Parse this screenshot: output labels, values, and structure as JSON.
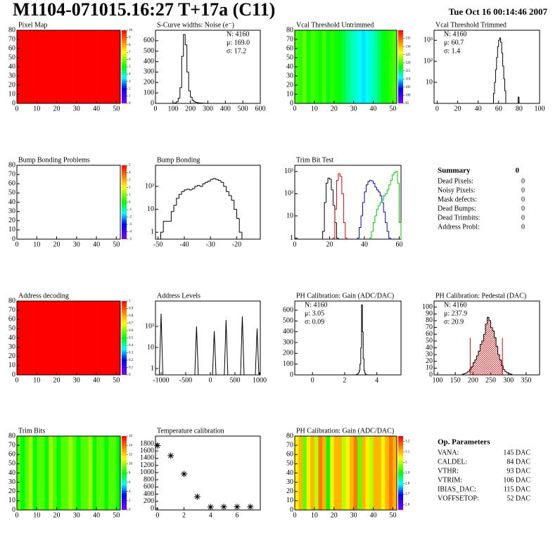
{
  "header": {
    "title": "M1104-071015.16:27 T+17a (C11)",
    "date": "Tue Oct 16 00:14:46 2007"
  },
  "chart_data": [
    {
      "type": "heatmap",
      "title": "Pixel Map",
      "xlim": [
        0,
        52
      ],
      "ylim": [
        0,
        80
      ],
      "xticks": [
        0,
        10,
        20,
        30,
        40,
        50
      ],
      "yticks": [
        0,
        10,
        20,
        30,
        40,
        50,
        60,
        70,
        80
      ],
      "zlim": [
        0,
        10
      ],
      "zticks": [
        0,
        1,
        2,
        3,
        4,
        5,
        6,
        7,
        8,
        9,
        10
      ],
      "values": [
        10,
        10,
        10,
        10,
        10,
        10,
        10,
        10,
        10,
        10,
        10,
        10,
        10
      ]
    },
    {
      "type": "hist",
      "title": "S-Curve widths: Noise (e⁻)",
      "xlim": [
        0,
        600
      ],
      "ylim": [
        0,
        700
      ],
      "xticks": [
        0,
        100,
        200,
        300,
        400,
        500,
        600
      ],
      "yticks": [
        0,
        100,
        200,
        300,
        400,
        500,
        600
      ],
      "log": false,
      "stats": [
        "N: 4160",
        "μ: 169.0",
        "σ: 17.2"
      ],
      "stats_corner": "right",
      "series": [
        {
          "color": "#000000",
          "bins": [
            100,
            110,
            120,
            130,
            140,
            150,
            160,
            170,
            180,
            190,
            200,
            210,
            220,
            230,
            240,
            250,
            260,
            270,
            280,
            290,
            300
          ],
          "values": [
            2,
            5,
            15,
            50,
            150,
            450,
            660,
            560,
            300,
            120,
            60,
            30,
            15,
            10,
            6,
            4,
            3,
            2,
            1,
            1
          ]
        }
      ]
    },
    {
      "type": "heatmap",
      "title": "Vcal Threshold Untrimmed",
      "xlim": [
        0,
        52
      ],
      "ylim": [
        0,
        80
      ],
      "xticks": [
        0,
        10,
        20,
        30,
        40,
        50
      ],
      "yticks": [
        0,
        10,
        20,
        30,
        40,
        50,
        60,
        70,
        80
      ],
      "zlim": [
        95,
        140
      ],
      "zticks": [
        95,
        100,
        105,
        110,
        115,
        120,
        125,
        130,
        135
      ],
      "values": [
        120,
        119,
        121,
        118,
        120,
        119,
        118,
        120,
        117,
        119,
        118,
        117,
        116,
        114,
        113,
        112,
        111,
        110,
        111,
        112,
        113,
        115,
        117,
        118,
        119,
        120
      ]
    },
    {
      "type": "hist",
      "title": "Vcal Threshold Trimmed",
      "xlim": [
        -3,
        100
      ],
      "ylim": [
        1,
        3000
      ],
      "xticks": [
        0,
        20,
        40,
        60,
        80,
        100
      ],
      "yticks": [
        10,
        {
          "value": 100,
          "label": "10²"
        },
        {
          "value": 1000,
          "label": "10³"
        }
      ],
      "log": true,
      "stats": [
        "N: 4160",
        "μ: 60.7",
        "σ:  1.4"
      ],
      "stats_corner": "left",
      "series": [
        {
          "color": "#000000",
          "bins": [
            54,
            55,
            56,
            57,
            58,
            59,
            60,
            61,
            62,
            63,
            64,
            65,
            66,
            67,
            68,
            69,
            70,
            71,
            72,
            73,
            74,
            75,
            76,
            77,
            78,
            79,
            80,
            81
          ],
          "values": [
            1,
            3,
            10,
            40,
            150,
            500,
            1000,
            1300,
            800,
            250,
            60,
            15,
            4,
            1,
            0,
            0,
            0,
            0,
            0,
            0,
            0,
            0,
            0,
            0,
            0,
            2,
            0
          ]
        }
      ]
    },
    {
      "type": "heatmap",
      "title": "Bump Bonding Problems",
      "xlim": [
        0,
        52
      ],
      "ylim": [
        0,
        80
      ],
      "xticks": [
        0,
        10,
        20,
        30,
        40,
        50
      ],
      "yticks": [
        0,
        10,
        20,
        30,
        40,
        50,
        60,
        70,
        80
      ],
      "zlim": [
        -5,
        5
      ],
      "zticks": [
        -5,
        -4,
        -3,
        -2,
        -1,
        0,
        1,
        2,
        3,
        4,
        5
      ]
    },
    {
      "type": "hist",
      "title": "Bump Bonding",
      "xlim": [
        -51,
        -11
      ],
      "ylim": [
        0.5,
        830
      ],
      "xticks": [
        -50,
        -40,
        -30,
        -20
      ],
      "yticks": [
        1,
        10,
        {
          "value": 100,
          "label": "10²"
        }
      ],
      "log": true,
      "series": [
        {
          "color": "#000000",
          "bins": [
            -50,
            -49,
            -48,
            -47,
            -46,
            -45,
            -44,
            -43,
            -42,
            -41,
            -40,
            -39,
            -38,
            -37,
            -36,
            -35,
            -34,
            -33,
            -32,
            -31,
            -30,
            -29,
            -28,
            -27,
            -26,
            -25,
            -24,
            -23,
            -22,
            -21,
            -20,
            -19,
            -18,
            -17
          ],
          "values": [
            0,
            1,
            3,
            3,
            3,
            8,
            15,
            30,
            45,
            60,
            70,
            75,
            70,
            80,
            100,
            110,
            100,
            130,
            150,
            170,
            200,
            220,
            200,
            180,
            150,
            100,
            60,
            40,
            25,
            10,
            4,
            1,
            0
          ]
        }
      ]
    },
    {
      "type": "hist",
      "title": "Trim Bit Test",
      "xlim": [
        0,
        61
      ],
      "ylim": [
        0.9,
        1900
      ],
      "xticks": [
        0,
        20,
        40,
        60
      ],
      "yticks": [
        1,
        10,
        {
          "value": 100,
          "label": "10²"
        },
        {
          "value": 1000,
          "label": "10³"
        }
      ],
      "log": true,
      "series": [
        {
          "color": "#000000",
          "bins": [
            16,
            17,
            18,
            19,
            20,
            21,
            22,
            23,
            24,
            25
          ],
          "values": [
            2,
            40,
            300,
            500,
            450,
            150,
            30,
            5,
            1
          ]
        },
        {
          "color": "#e00000",
          "bins": [
            22,
            23,
            24,
            25,
            26,
            27,
            28,
            29,
            30
          ],
          "values": [
            1,
            20,
            400,
            800,
            600,
            100,
            5,
            1
          ]
        },
        {
          "color": "#0000cc",
          "bins": [
            36,
            37,
            38,
            39,
            40,
            41,
            42,
            43,
            44,
            45,
            46,
            47,
            48,
            49,
            50,
            51,
            52,
            53,
            54,
            55
          ],
          "values": [
            1,
            3,
            10,
            40,
            120,
            250,
            350,
            400,
            380,
            300,
            200,
            150,
            120,
            80,
            40,
            15,
            5,
            2,
            1
          ]
        },
        {
          "color": "#00cc00",
          "bins": [
            43,
            44,
            45,
            46,
            47,
            48,
            49,
            50,
            51,
            52,
            53,
            54,
            55,
            56,
            57,
            58,
            59,
            60,
            61
          ],
          "values": [
            1,
            2,
            5,
            10,
            20,
            30,
            40,
            50,
            80,
            100,
            150,
            250,
            400,
            700,
            900,
            1000,
            300,
            5
          ]
        }
      ]
    },
    {
      "type": "heatmap",
      "title": "Address decoding",
      "xlim": [
        0,
        52
      ],
      "ylim": [
        0,
        80
      ],
      "xticks": [
        0,
        10,
        20,
        30,
        40,
        50
      ],
      "yticks": [
        0,
        10,
        20,
        30,
        40,
        50,
        60,
        70,
        80
      ],
      "zlim": [
        0,
        1
      ],
      "zticks": [
        0,
        0.1,
        0.2,
        0.3,
        0.4,
        0.5,
        0.6,
        0.7,
        0.8,
        0.9,
        1
      ],
      "values": [
        1,
        1,
        1,
        1,
        1,
        1,
        1,
        1,
        1,
        1,
        1,
        1,
        1
      ]
    },
    {
      "type": "spike",
      "title": "Address Levels",
      "xlim": [
        -1114,
        1015
      ],
      "ylim": [
        0.5,
        1600
      ],
      "xticks": [
        -1000,
        -500,
        0,
        500,
        1000
      ],
      "yticks": [
        1,
        10,
        {
          "value": 100,
          "label": "10²"
        }
      ],
      "log": true,
      "color": "#000000",
      "x": [
        -1000,
        -280,
        80,
        320,
        650,
        950
      ],
      "values": [
        400,
        100,
        60,
        200,
        300,
        80
      ]
    },
    {
      "type": "hist",
      "title": "PH Calibration: Gain (ADC/DAC)",
      "xlim": [
        -1.1,
        5.5
      ],
      "ylim": [
        0,
        685
      ],
      "xticks": [
        0,
        2,
        4
      ],
      "yticks": [
        0,
        100,
        200,
        300,
        400,
        500,
        600
      ],
      "log": false,
      "stats": [
        "N: 4160",
        "μ: 3.05",
        "σ: 0.09"
      ],
      "stats_corner": "left",
      "series": [
        {
          "color": "#000000",
          "bins": [
            2.7,
            2.75,
            2.8,
            2.85,
            2.9,
            2.95,
            3.0,
            3.05,
            3.1,
            3.15,
            3.2,
            3.25,
            3.3,
            3.35,
            3.4
          ],
          "values": [
            2,
            5,
            10,
            20,
            40,
            100,
            250,
            650,
            400,
            150,
            40,
            15,
            5,
            2
          ]
        }
      ]
    },
    {
      "type": "hist",
      "title": "PH Calibration: Pedestal (DAC)",
      "xlim": [
        90,
        388
      ],
      "ylim": [
        0,
        109
      ],
      "xticks": [
        100,
        150,
        200,
        250,
        300,
        350
      ],
      "yticks": [
        0,
        10,
        20,
        30,
        40,
        50,
        60,
        70,
        80,
        90,
        100
      ],
      "log": false,
      "stats": [
        "N: 4160",
        "μ: 237.9",
        "σ: 20.9"
      ],
      "stats_colors": [
        "#000000",
        "#e00000",
        "#e00000"
      ],
      "stats_corner": "left",
      "fill_color": "#e00000",
      "lines_x": [
        192,
        283
      ],
      "series": [
        {
          "color": "#000000",
          "bins": [
            170,
            175,
            180,
            185,
            190,
            195,
            200,
            205,
            210,
            215,
            220,
            225,
            230,
            235,
            240,
            245,
            250,
            255,
            260,
            265,
            270,
            275,
            280,
            285,
            290,
            295,
            300,
            305,
            310
          ],
          "values": [
            1,
            2,
            3,
            5,
            8,
            12,
            18,
            22,
            28,
            35,
            45,
            50,
            60,
            75,
            85,
            80,
            70,
            65,
            55,
            42,
            30,
            22,
            14,
            8,
            5,
            3,
            2,
            1
          ]
        }
      ]
    },
    {
      "type": "heatmap",
      "title": "Trim Bits",
      "xlim": [
        0,
        52
      ],
      "ylim": [
        0,
        80
      ],
      "xticks": [
        0,
        10,
        20,
        30,
        40,
        50
      ],
      "yticks": [
        0,
        10,
        20,
        30,
        40,
        50,
        60,
        70,
        80
      ],
      "zlim": [
        0,
        16
      ],
      "zticks": [
        0,
        2,
        4,
        6,
        8,
        10,
        12,
        14,
        16
      ],
      "values": [
        9,
        8,
        9,
        10,
        8,
        9,
        9,
        8,
        10,
        9,
        8,
        9,
        9,
        10,
        9,
        8,
        9,
        9,
        10,
        8,
        9,
        9,
        8,
        9,
        9,
        8
      ]
    },
    {
      "type": "scatter",
      "title": "Temperature calibration",
      "xlim": [
        -0.15,
        7.75
      ],
      "ylim": [
        -40,
        2015
      ],
      "xticks": [
        0,
        2,
        4,
        6
      ],
      "yticks": [
        0,
        200,
        400,
        600,
        800,
        1000,
        1200,
        1400,
        1600,
        1800
      ],
      "color": "#000000",
      "x": [
        0,
        1,
        2,
        3,
        4,
        5,
        6,
        7
      ],
      "values": [
        1750,
        1470,
        960,
        330,
        40,
        45,
        45,
        45
      ]
    },
    {
      "type": "heatmap",
      "title": "PH Calibration: Gain (ADC/DAC)",
      "xlim": [
        0,
        52
      ],
      "ylim": [
        0,
        80
      ],
      "xticks": [
        0,
        10,
        20,
        30,
        40,
        50
      ],
      "yticks": [
        0,
        10,
        20,
        30,
        40,
        50,
        60,
        70,
        80
      ],
      "zlim": [
        2.55,
        3.25
      ],
      "zticks": [
        2.6,
        2.7,
        2.8,
        2.9,
        3,
        3.1,
        3.2
      ],
      "values": [
        3.05,
        3.1,
        2.95,
        3.05,
        3.1,
        3.0,
        3.15,
        3.1,
        2.9,
        3.05,
        3.1,
        3.1,
        3.0,
        3.05,
        3.1,
        3.15,
        2.95,
        3.1,
        3.05,
        3.0,
        3.1,
        3.1,
        3.05,
        3.1,
        3.15,
        3.1
      ]
    }
  ],
  "summary": {
    "title": "Summary",
    "total": 0,
    "rows": [
      [
        "Dead Pixels:",
        0
      ],
      [
        "Noisy Pixels:",
        0
      ],
      [
        "Mask defects:",
        0
      ],
      [
        "Dead Bumps:",
        0
      ],
      [
        "Dead Trimbits:",
        0
      ],
      [
        "Address Probl:",
        0
      ]
    ]
  },
  "parameters": {
    "title": "Op. Parameters",
    "rows": [
      [
        "VANA:",
        "145 DAC"
      ],
      [
        "CALDEL:",
        "84 DAC"
      ],
      [
        "VTHR:",
        "93 DAC"
      ],
      [
        "VTRIM:",
        "106 DAC"
      ],
      [
        "IBIAS_DAC:",
        "115 DAC"
      ],
      [
        "VOFFSETOP:",
        "52 DAC"
      ]
    ]
  }
}
